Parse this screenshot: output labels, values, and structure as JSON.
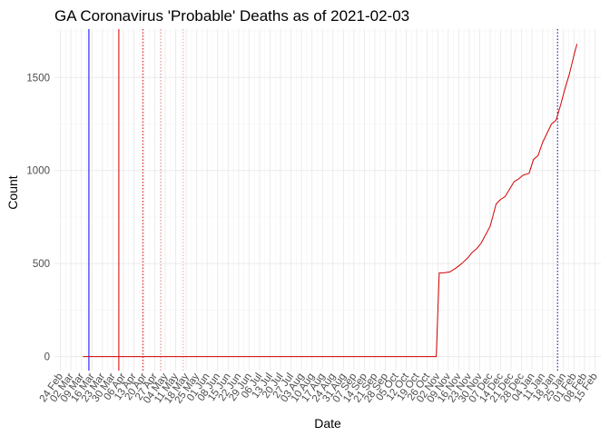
{
  "chart_data": {
    "type": "line",
    "title": "GA Coronavirus 'Probable' Deaths as of 2021-02-03",
    "xlabel": "Date",
    "ylabel": "Count",
    "x_axis": {
      "type": "date",
      "range": [
        "2020-02-20",
        "2021-02-19"
      ],
      "ticks": [
        "2020-02-24",
        "2020-03-02",
        "2020-03-09",
        "2020-03-16",
        "2020-03-23",
        "2020-03-30",
        "2020-04-06",
        "2020-04-13",
        "2020-04-20",
        "2020-04-27",
        "2020-05-04",
        "2020-05-11",
        "2020-05-18",
        "2020-05-25",
        "2020-06-01",
        "2020-06-08",
        "2020-06-15",
        "2020-06-22",
        "2020-06-29",
        "2020-07-06",
        "2020-07-13",
        "2020-07-20",
        "2020-07-27",
        "2020-08-03",
        "2020-08-10",
        "2020-08-17",
        "2020-08-24",
        "2020-08-31",
        "2020-09-07",
        "2020-09-14",
        "2020-09-21",
        "2020-09-28",
        "2020-10-05",
        "2020-10-12",
        "2020-10-19",
        "2020-10-26",
        "2020-11-02",
        "2020-11-09",
        "2020-11-16",
        "2020-11-23",
        "2020-11-30",
        "2020-12-07",
        "2020-12-14",
        "2020-12-21",
        "2020-12-28",
        "2021-01-04",
        "2021-01-11",
        "2021-01-18",
        "2021-01-25",
        "2021-02-01",
        "2021-02-08",
        "2021-02-15"
      ],
      "tick_labels": [
        "24 Feb",
        "02 Mar",
        "09 Mar",
        "16 Mar",
        "23 Mar",
        "30 Mar",
        "06 Apr",
        "13 Apr",
        "20 Apr",
        "27 Apr",
        "04 May",
        "11 May",
        "18 May",
        "25 May",
        "01 Jun",
        "08 Jun",
        "15 Jun",
        "22 Jun",
        "29 Jun",
        "06 Jul",
        "13 Jul",
        "20 Jul",
        "27 Jul",
        "03 Aug",
        "10 Aug",
        "17 Aug",
        "24 Aug",
        "31 Aug",
        "07 Sep",
        "14 Sep",
        "21 Sep",
        "28 Sep",
        "05 Oct",
        "12 Oct",
        "19 Oct",
        "26 Oct",
        "02 Nov",
        "09 Nov",
        "16 Nov",
        "23 Nov",
        "30 Nov",
        "07 Dec",
        "14 Dec",
        "21 Dec",
        "28 Dec",
        "04 Jan",
        "11 Jan",
        "18 Jan",
        "25 Jan",
        "01 Feb",
        "08 Feb",
        "15 Feb"
      ]
    },
    "y_axis": {
      "range": [
        -75,
        1760
      ],
      "ticks": [
        0,
        500,
        1000,
        1500
      ],
      "tick_labels": [
        "0",
        "500",
        "1000",
        "1500"
      ]
    },
    "grid": true,
    "series": [
      {
        "color": "#d40000",
        "points": [
          [
            "2020-03-10",
            0
          ],
          [
            "2020-11-01",
            0
          ],
          [
            "2020-11-03",
            450
          ],
          [
            "2020-11-06",
            450
          ],
          [
            "2020-11-10",
            455
          ],
          [
            "2020-11-14",
            475
          ],
          [
            "2020-11-18",
            500
          ],
          [
            "2020-11-22",
            530
          ],
          [
            "2020-11-25",
            560
          ],
          [
            "2020-11-28",
            580
          ],
          [
            "2020-12-01",
            610
          ],
          [
            "2020-12-04",
            655
          ],
          [
            "2020-12-07",
            700
          ],
          [
            "2020-12-09",
            760
          ],
          [
            "2020-12-11",
            820
          ],
          [
            "2020-12-14",
            845
          ],
          [
            "2020-12-17",
            860
          ],
          [
            "2020-12-20",
            900
          ],
          [
            "2020-12-23",
            940
          ],
          [
            "2020-12-26",
            955
          ],
          [
            "2020-12-29",
            975
          ],
          [
            "2021-01-02",
            985
          ],
          [
            "2021-01-05",
            1060
          ],
          [
            "2021-01-08",
            1080
          ],
          [
            "2021-01-11",
            1150
          ],
          [
            "2021-01-14",
            1200
          ],
          [
            "2021-01-17",
            1250
          ],
          [
            "2021-01-20",
            1270
          ],
          [
            "2021-01-23",
            1350
          ],
          [
            "2021-01-26",
            1440
          ],
          [
            "2021-01-29",
            1520
          ],
          [
            "2021-02-01",
            1620
          ],
          [
            "2021-02-03",
            1680
          ]
        ]
      }
    ],
    "reference_lines": [
      {
        "date": "2020-03-14",
        "color": "#0000ff",
        "style": "solid"
      },
      {
        "date": "2020-04-03",
        "color": "#d40000",
        "style": "solid"
      },
      {
        "date": "2020-04-19",
        "color": "#d40000",
        "style": "dotted"
      },
      {
        "date": "2020-05-01",
        "color": "#e08080",
        "style": "dotted"
      },
      {
        "date": "2020-05-16",
        "color": "#e8a0a0",
        "style": "dotted"
      },
      {
        "date": "2021-01-21",
        "color": "#000080",
        "style": "dotted"
      }
    ]
  }
}
